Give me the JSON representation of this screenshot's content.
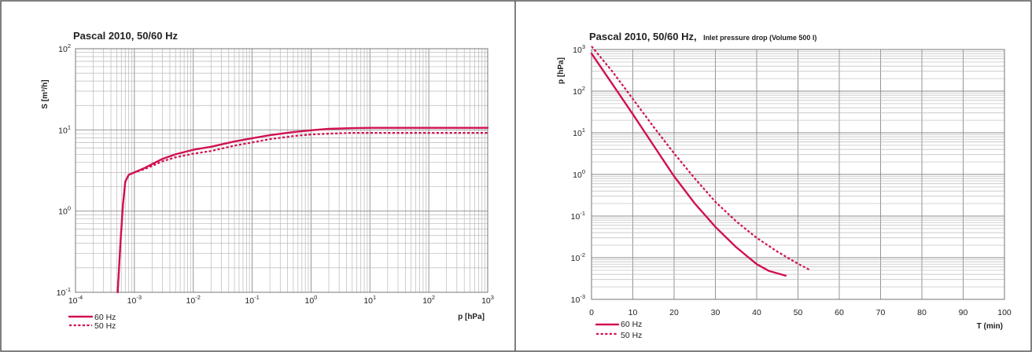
{
  "colors": {
    "series": "#d0124f",
    "frame": "#555555"
  },
  "chart_data": [
    {
      "type": "line",
      "title": "Pascal 2010, 50/60 Hz",
      "xlabel": "p [hPa]",
      "ylabel": "S [m³/h]",
      "x_scale": "log",
      "y_scale": "log",
      "xlim": [
        0.0001,
        1000
      ],
      "ylim": [
        0.1,
        100
      ],
      "grid": true,
      "legend": "bottom-left",
      "x_ticks": [
        {
          "base": "10",
          "exp": "-4"
        },
        {
          "base": "10",
          "exp": "-3"
        },
        {
          "base": "10",
          "exp": "-2"
        },
        {
          "base": "10",
          "exp": "-1"
        },
        {
          "base": "10",
          "exp": "0"
        },
        {
          "base": "10",
          "exp": "1"
        },
        {
          "base": "10",
          "exp": "2"
        },
        {
          "base": "10",
          "exp": "3"
        }
      ],
      "y_ticks": [
        {
          "base": "10",
          "exp": "-1"
        },
        {
          "base": "10",
          "exp": "0"
        },
        {
          "base": "10",
          "exp": "1"
        },
        {
          "base": "10",
          "exp": "2"
        }
      ],
      "series": [
        {
          "name": "60 Hz",
          "style": "solid",
          "x": [
            0.00052,
            0.00058,
            0.00064,
            0.0007,
            0.0008,
            0.001,
            0.0015,
            0.002,
            0.003,
            0.005,
            0.01,
            0.02,
            0.05,
            0.1,
            0.2,
            0.5,
            1,
            2,
            5,
            10,
            100,
            1000
          ],
          "y": [
            0.1,
            0.4,
            1.2,
            2.3,
            2.8,
            3.0,
            3.4,
            3.8,
            4.4,
            5.0,
            5.7,
            6.2,
            7.2,
            7.9,
            8.6,
            9.4,
            9.9,
            10.3,
            10.5,
            10.6,
            10.6,
            10.6
          ]
        },
        {
          "name": "50 Hz",
          "style": "dashed",
          "x": [
            0.00052,
            0.00058,
            0.00064,
            0.0007,
            0.0008,
            0.001,
            0.0015,
            0.002,
            0.003,
            0.005,
            0.01,
            0.02,
            0.05,
            0.1,
            0.2,
            0.5,
            1,
            2,
            5,
            10,
            100,
            1000
          ],
          "y": [
            0.1,
            0.4,
            1.2,
            2.3,
            2.8,
            3.0,
            3.3,
            3.6,
            4.1,
            4.6,
            5.1,
            5.5,
            6.4,
            7.0,
            7.7,
            8.4,
            8.8,
            9.0,
            9.2,
            9.2,
            9.2,
            9.2
          ]
        }
      ]
    },
    {
      "type": "line",
      "title": "Pascal 2010, 50/60 Hz,",
      "subtitle": "Inlet pressure drop (Volume 500 l)",
      "xlabel": "T (min)",
      "ylabel": "p [hPa]",
      "x_scale": "linear",
      "y_scale": "log",
      "xlim": [
        0,
        100
      ],
      "ylim": [
        0.001,
        1000
      ],
      "grid": true,
      "legend": "bottom-left",
      "x_ticks": [
        "0",
        "10",
        "20",
        "30",
        "40",
        "50",
        "60",
        "70",
        "80",
        "90",
        "100"
      ],
      "y_ticks": [
        {
          "base": "10",
          "exp": "-3"
        },
        {
          "base": "10",
          "exp": "-2"
        },
        {
          "base": "10",
          "exp": "-1"
        },
        {
          "base": "10",
          "exp": "0"
        },
        {
          "base": "10",
          "exp": "1"
        },
        {
          "base": "10",
          "exp": "2"
        },
        {
          "base": "10",
          "exp": "3"
        }
      ],
      "series": [
        {
          "name": "60 Hz",
          "style": "solid",
          "x": [
            0,
            5,
            10,
            15,
            20,
            25,
            30,
            35,
            40,
            43,
            47
          ],
          "y": [
            800,
            150,
            28,
            5,
            0.9,
            0.2,
            0.055,
            0.018,
            0.007,
            0.0048,
            0.0037
          ]
        },
        {
          "name": "50 Hz",
          "style": "dashed",
          "x": [
            0,
            5,
            10,
            15,
            20,
            25,
            30,
            35,
            40,
            45,
            50,
            53
          ],
          "y": [
            1200,
            300,
            65,
            14,
            3.2,
            0.8,
            0.22,
            0.075,
            0.03,
            0.014,
            0.0072,
            0.005
          ]
        }
      ]
    }
  ]
}
